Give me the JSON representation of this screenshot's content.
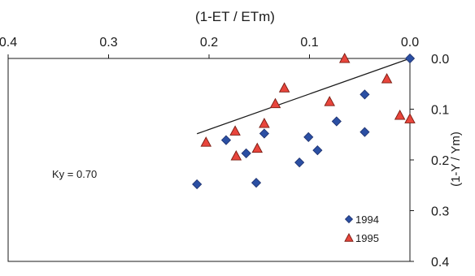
{
  "chart_data": {
    "type": "scatter",
    "title": "",
    "xlabel": "(1-ET / ETm)",
    "ylabel": "(1-Y / Ym)",
    "xlim": [
      0.4,
      0.0
    ],
    "ylim": [
      0.0,
      0.4
    ],
    "x_ticks": [
      "0.4",
      "0.3",
      "0.2",
      "0.1",
      "0.0"
    ],
    "y_ticks": [
      "0.0",
      "0.1",
      "0.2",
      "0.3",
      "0.4"
    ],
    "x_axis_position": "top",
    "y_axis_position": "right",
    "x_reversed": true,
    "y_reversed": true,
    "grid": false,
    "legend_position": "bottom-right",
    "annotation": "Ky = 0.70",
    "trendline": {
      "slope": 0.7,
      "intercept": 0.0,
      "x_range": [
        0.0,
        0.212
      ]
    },
    "series": [
      {
        "name": "1994",
        "marker": "diamond",
        "color": "#2b4fa3",
        "points": [
          [
            0.0,
            0.0
          ],
          [
            0.212,
            0.248
          ],
          [
            0.183,
            0.161
          ],
          [
            0.163,
            0.187
          ],
          [
            0.145,
            0.148
          ],
          [
            0.153,
            0.245
          ],
          [
            0.11,
            0.205
          ],
          [
            0.101,
            0.155
          ],
          [
            0.092,
            0.181
          ],
          [
            0.073,
            0.124
          ],
          [
            0.045,
            0.071
          ],
          [
            0.045,
            0.145
          ]
        ]
      },
      {
        "name": "1995",
        "marker": "triangle",
        "color": "#e8453c",
        "points": [
          [
            0.065,
            0.0
          ],
          [
            0.023,
            0.04
          ],
          [
            0.125,
            0.058
          ],
          [
            0.134,
            0.089
          ],
          [
            0.08,
            0.085
          ],
          [
            0.145,
            0.128
          ],
          [
            0.174,
            0.143
          ],
          [
            0.203,
            0.165
          ],
          [
            0.173,
            0.192
          ],
          [
            0.152,
            0.177
          ],
          [
            0.01,
            0.112
          ],
          [
            0.0,
            0.119
          ]
        ]
      }
    ]
  }
}
